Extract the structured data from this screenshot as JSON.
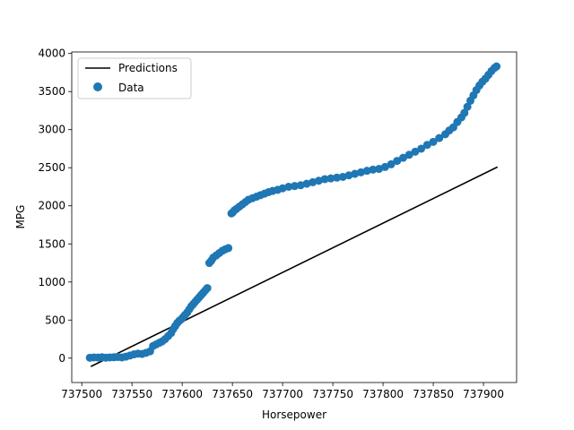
{
  "chart_data": {
    "type": "scatter",
    "title": "",
    "xlabel": "Horsepower",
    "ylabel": "MPG",
    "xlim": [
      737490,
      737933
    ],
    "ylim": [
      -320,
      4020
    ],
    "xticks": [
      737500,
      737550,
      737600,
      737650,
      737700,
      737750,
      737800,
      737850,
      737900
    ],
    "yticks": [
      0,
      500,
      1000,
      1500,
      2000,
      2500,
      3000,
      3500,
      4000
    ],
    "grid": false,
    "legend": {
      "placement": "top-left",
      "entries": [
        "Predictions",
        "Data"
      ]
    },
    "colors": {
      "data": "#1f77b4",
      "predictions": "#000000"
    },
    "series": [
      {
        "name": "Predictions",
        "kind": "line",
        "x": [
          737509,
          737914
        ],
        "y": [
          -110,
          2510
        ]
      },
      {
        "name": "Data",
        "kind": "scatter",
        "x": [
          737508,
          737512,
          737516,
          737520,
          737524,
          737528,
          737532,
          737536,
          737540,
          737544,
          737548,
          737552,
          737556,
          737560,
          737564,
          737568,
          737571,
          737574,
          737577,
          737580,
          737583,
          737586,
          737589,
          737591,
          737593,
          737595,
          737597,
          737599,
          737601,
          737603,
          737605,
          737607,
          737609,
          737611,
          737613,
          737615,
          737617,
          737619,
          737621,
          737623,
          737625,
          737627,
          737629,
          737631,
          737634,
          737637,
          737640,
          737643,
          737646,
          737649,
          737650,
          737652,
          737654,
          737657,
          737660,
          737663,
          737666,
          737670,
          737674,
          737678,
          737682,
          737686,
          737690,
          737695,
          737700,
          737706,
          737712,
          737718,
          737724,
          737730,
          737736,
          737742,
          737748,
          737754,
          737760,
          737766,
          737772,
          737778,
          737784,
          737790,
          737796,
          737802,
          737808,
          737814,
          737820,
          737826,
          737832,
          737838,
          737844,
          737850,
          737856,
          737862,
          737866,
          737870,
          737874,
          737878,
          737881,
          737884,
          737887,
          737890,
          737893,
          737896,
          737899,
          737902,
          737905,
          737908,
          737911,
          737913
        ],
        "y": [
          5,
          10,
          8,
          12,
          6,
          10,
          12,
          15,
          10,
          20,
          35,
          50,
          60,
          55,
          70,
          90,
          160,
          180,
          200,
          220,
          250,
          290,
          330,
          380,
          420,
          460,
          490,
          510,
          540,
          570,
          600,
          640,
          680,
          710,
          740,
          770,
          800,
          830,
          860,
          890,
          920,
          1250,
          1280,
          1320,
          1350,
          1380,
          1410,
          1430,
          1445,
          1900,
          1910,
          1940,
          1960,
          1990,
          2020,
          2050,
          2080,
          2100,
          2120,
          2140,
          2160,
          2180,
          2195,
          2210,
          2230,
          2250,
          2260,
          2270,
          2290,
          2310,
          2330,
          2350,
          2360,
          2370,
          2380,
          2400,
          2420,
          2440,
          2460,
          2475,
          2485,
          2510,
          2545,
          2590,
          2630,
          2670,
          2710,
          2750,
          2800,
          2840,
          2890,
          2940,
          2990,
          3030,
          3100,
          3160,
          3220,
          3300,
          3380,
          3450,
          3520,
          3580,
          3630,
          3670,
          3720,
          3770,
          3810,
          3830
        ]
      }
    ]
  }
}
